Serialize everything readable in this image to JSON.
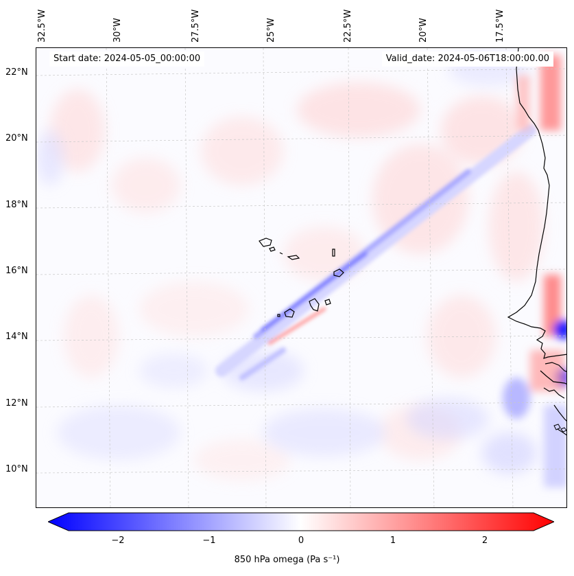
{
  "map": {
    "start_date": "Start date: 2024-05-05_00:00:00",
    "valid_date": "Valid_date: 2024-05-06T18:00:00.00",
    "longitude_labels": [
      "32.5°W",
      "30°W",
      "27.5°W",
      "25°W",
      "22.5°W",
      "20°W",
      "17.5°W"
    ],
    "latitude_labels": [
      "22°N",
      "20°N",
      "18°N",
      "16°N",
      "14°N",
      "12°N",
      "10°N"
    ]
  },
  "colorbar": {
    "ticks": [
      "−2",
      "−1",
      "0",
      "1",
      "2"
    ],
    "label": "850 hPa omega (Pa s⁻¹)",
    "min_value": -2.5,
    "max_value": 2.5,
    "negative_color": "#0000ff",
    "positive_color": "#ff0000"
  }
}
